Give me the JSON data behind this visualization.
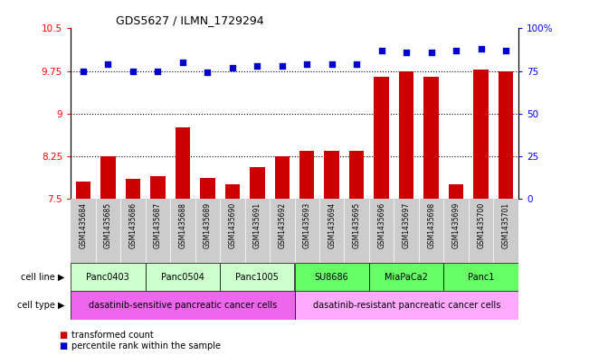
{
  "title": "GDS5627 / ILMN_1729294",
  "samples": [
    "GSM1435684",
    "GSM1435685",
    "GSM1435686",
    "GSM1435687",
    "GSM1435688",
    "GSM1435689",
    "GSM1435690",
    "GSM1435691",
    "GSM1435692",
    "GSM1435693",
    "GSM1435694",
    "GSM1435695",
    "GSM1435696",
    "GSM1435697",
    "GSM1435698",
    "GSM1435699",
    "GSM1435700",
    "GSM1435701"
  ],
  "bar_values": [
    7.8,
    8.25,
    7.85,
    7.9,
    8.75,
    7.87,
    7.75,
    8.05,
    8.25,
    8.35,
    8.35,
    8.35,
    9.65,
    9.75,
    9.65,
    7.75,
    9.78,
    9.75
  ],
  "dot_values": [
    75,
    79,
    75,
    75,
    80,
    74,
    77,
    78,
    78,
    79,
    79,
    79,
    87,
    86,
    86,
    87,
    88,
    87
  ],
  "ylim_left": [
    7.5,
    10.5
  ],
  "ylim_right": [
    0,
    100
  ],
  "yticks_left": [
    7.5,
    8.25,
    9.0,
    9.75,
    10.5
  ],
  "ytick_labels_left": [
    "7.5",
    "8.25",
    "9",
    "9.75",
    "10.5"
  ],
  "yticks_right": [
    0,
    25,
    50,
    75,
    100
  ],
  "ytick_labels_right": [
    "0",
    "25",
    "50",
    "75",
    "100%"
  ],
  "grid_values": [
    8.25,
    9.0,
    9.75
  ],
  "bar_color": "#cc0000",
  "dot_color": "#0000cc",
  "cell_lines": [
    {
      "label": "Panc0403",
      "start": 0,
      "end": 2
    },
    {
      "label": "Panc0504",
      "start": 3,
      "end": 5
    },
    {
      "label": "Panc1005",
      "start": 6,
      "end": 8
    },
    {
      "label": "SU8686",
      "start": 9,
      "end": 11
    },
    {
      "label": "MiaPaCa2",
      "start": 12,
      "end": 14
    },
    {
      "label": "Panc1",
      "start": 15,
      "end": 17
    }
  ],
  "cell_line_color_sensitive": "#ccffcc",
  "cell_line_color_resistant": "#66ff66",
  "cell_types": [
    {
      "label": "dasatinib-sensitive pancreatic cancer cells",
      "start": 0,
      "end": 8
    },
    {
      "label": "dasatinib-resistant pancreatic cancer cells",
      "start": 9,
      "end": 17
    }
  ],
  "cell_type_color_sensitive": "#ee66ee",
  "cell_type_color_resistant": "#ffaaff",
  "xtick_bg_color": "#cccccc",
  "legend_bar_label": "transformed count",
  "legend_dot_label": "percentile rank within the sample",
  "cell_line_row_label": "cell line",
  "cell_type_row_label": "cell type"
}
